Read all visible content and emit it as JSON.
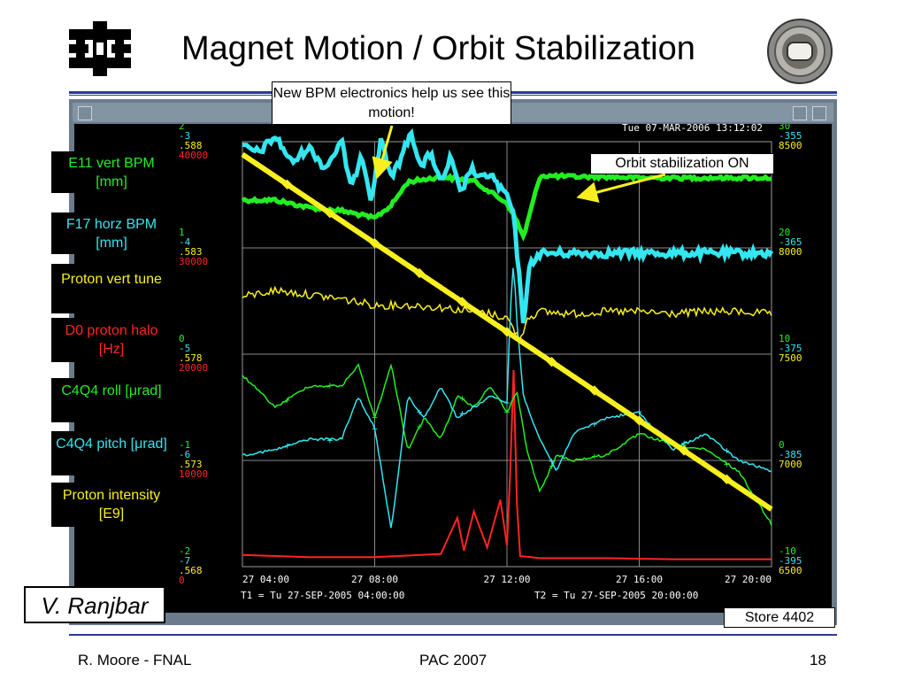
{
  "slide": {
    "title": "Magnet Motion / Orbit Stabilization",
    "callout_top": "New BPM electronics help us see this motion!",
    "callout_right": "Orbit stabilization ON",
    "author": "V. Ranjbar",
    "store": "Store 4402",
    "footer": {
      "left": "R. Moore - FNAL",
      "center": "PAC 2007",
      "right": "18"
    }
  },
  "colors": {
    "green": "#22ee22",
    "cyan": "#33e6ef",
    "yellow": "#f8f01e",
    "red": "#ff2424",
    "white": "#ffffff",
    "rule": "#2a3a9a"
  },
  "icons": {
    "logo": "fermilab-logo-icon",
    "badge": "tevatron-beampipe-icon"
  },
  "legend": [
    {
      "label": "E11 vert BPM [mm]",
      "color": "#22ee22"
    },
    {
      "label": "F17 horz BPM [mm]",
      "color": "#33e6ef"
    },
    {
      "label": "Proton vert tune",
      "color": "#f8f01e"
    },
    {
      "label": "D0 proton halo [Hz]",
      "color": "#ff2424"
    },
    {
      "label": "C4Q4 roll [μrad]",
      "color": "#22ee22"
    },
    {
      "label": "C4Q4 pitch [μrad]",
      "color": "#33e6ef"
    },
    {
      "label": "Proton intensity  [E9]",
      "color": "#f8f01e"
    }
  ],
  "chart_data": {
    "type": "line",
    "timestamp": "Tue 07-MAR-2006 13:12:02",
    "t1": "T1 = Tu 27-SEP-2005 04:00:00",
    "t2": "T2 = Tu 27-SEP-2005 20:00:00",
    "x_ticks": [
      "27 04:00",
      "27 08:00",
      "27 12:00",
      "27 16:00",
      "27 20:00"
    ],
    "left_axis": [
      {
        "green": "2",
        "cyan": "-3",
        "yellow": ".588",
        "red": "40000"
      },
      {
        "green": "1",
        "cyan": "-4",
        "yellow": ".583",
        "red": "30000"
      },
      {
        "green": "0",
        "cyan": "-5",
        "yellow": ".578",
        "red": "20000"
      },
      {
        "green": "-1",
        "cyan": "-6",
        "yellow": ".573",
        "red": "10000"
      },
      {
        "green": "-2",
        "cyan": "-7",
        "yellow": ".568",
        "red": "0"
      }
    ],
    "right_axis": [
      {
        "green": "30",
        "cyan": "-355",
        "yellow": "8500"
      },
      {
        "green": "20",
        "cyan": "-365",
        "yellow": "8000"
      },
      {
        "green": "10",
        "cyan": "-375",
        "yellow": "7500"
      },
      {
        "green": "0",
        "cyan": "-385",
        "yellow": "7000"
      },
      {
        "green": "-10",
        "cyan": "-395",
        "yellow": "6500"
      }
    ],
    "x_range": [
      4,
      20
    ],
    "series": [
      {
        "name": "E11 vert BPM [mm]",
        "color": "#22ee22",
        "thick": true,
        "x": [
          4,
          5,
          6,
          7,
          8,
          8.5,
          9,
          10,
          11,
          12,
          12.3,
          12.5,
          13,
          14,
          15,
          16,
          17,
          18,
          19,
          20
        ],
        "y": [
          1.45,
          1.45,
          1.38,
          1.35,
          1.28,
          1.4,
          1.62,
          1.67,
          1.63,
          1.42,
          1.25,
          1.1,
          1.68,
          1.67,
          1.67,
          1.66,
          1.66,
          1.66,
          1.66,
          1.66
        ]
      },
      {
        "name": "F17 horz BPM [mm]",
        "color": "#33e6ef",
        "thick": true,
        "x": [
          4,
          4.5,
          5,
          5.5,
          6,
          6.5,
          7,
          7.3,
          7.6,
          7.9,
          8.2,
          8.5,
          8.8,
          9.1,
          9.4,
          9.7,
          10,
          10.3,
          10.6,
          10.9,
          11.2,
          11.5,
          11.8,
          12,
          12.2,
          12.35,
          12.5,
          12.7,
          13,
          14,
          15,
          16,
          17,
          18,
          19,
          20
        ],
        "y": [
          -3.05,
          -3.1,
          -2.95,
          -3.2,
          -3.05,
          -3.25,
          -3.0,
          -3.45,
          -3.1,
          -3.55,
          -2.95,
          -3.35,
          -3.15,
          -2.9,
          -3.25,
          -3.1,
          -3.4,
          -3.15,
          -3.5,
          -3.25,
          -3.35,
          -3.3,
          -3.45,
          -3.5,
          -3.7,
          -4.2,
          -4.7,
          -4.15,
          -4.05,
          -4.05,
          -4.05,
          -4.05,
          -4.05,
          -4.05,
          -4.05,
          -4.05
        ]
      },
      {
        "name": "Proton vert tune",
        "color": "#f8f01e",
        "thick": false,
        "x": [
          4,
          5,
          6,
          7,
          8,
          9,
          10,
          11,
          11.5,
          12,
          12.2,
          12.4,
          12.6,
          13,
          14,
          15,
          16,
          17,
          18,
          19,
          20
        ],
        "y": [
          0.5807,
          0.581,
          0.5808,
          0.5806,
          0.5803,
          0.5803,
          0.5802,
          0.58,
          0.5799,
          0.5797,
          0.5792,
          0.5786,
          0.5797,
          0.58,
          0.5799,
          0.58,
          0.58,
          0.5799,
          0.58,
          0.58,
          0.5799
        ]
      },
      {
        "name": "D0 proton halo [Hz]",
        "color": "#ff2424",
        "thick": false,
        "x": [
          4,
          6,
          8,
          10,
          10.5,
          10.7,
          11,
          11.4,
          11.8,
          12.0,
          12.1,
          12.2,
          12.3,
          12.4,
          13,
          15,
          17,
          19,
          20
        ],
        "y": [
          1100,
          900,
          900,
          1200,
          4600,
          1500,
          5200,
          1800,
          6300,
          2000,
          9000,
          18500,
          6000,
          1000,
          800,
          800,
          700,
          700,
          700
        ]
      },
      {
        "name": "C4Q4 roll [μrad]",
        "color": "#22ee22",
        "thick": false,
        "x": [
          4,
          5,
          6,
          7,
          7.5,
          8,
          8.5,
          9,
          9.5,
          10,
          10.5,
          11,
          11.5,
          12,
          12.3,
          12.6,
          13,
          13.5,
          14,
          15,
          16,
          17,
          18,
          19,
          20
        ],
        "y": [
          -0.2,
          -0.5,
          -0.3,
          -0.3,
          -0.1,
          -0.6,
          -0.1,
          -0.9,
          -0.6,
          -0.8,
          -0.4,
          -0.5,
          -0.3,
          -0.55,
          -0.35,
          -0.9,
          -1.3,
          -0.95,
          -1.0,
          -0.95,
          -0.75,
          -0.85,
          -0.9,
          -1.1,
          -1.6
        ]
      },
      {
        "name": "C4Q4 pitch [μrad]",
        "color": "#33e6ef",
        "thick": false,
        "x": [
          4,
          5,
          6,
          7,
          7.5,
          8,
          8.5,
          9,
          9.5,
          10,
          10.5,
          11,
          11.5,
          12,
          12.1,
          12.2,
          12.3,
          12.5,
          13,
          13.5,
          14,
          15,
          16,
          17,
          18,
          19,
          20
        ],
        "y": [
          -5.95,
          -5.9,
          -5.8,
          -5.8,
          -5.4,
          -5.7,
          -6.65,
          -5.4,
          -5.6,
          -5.3,
          -5.6,
          -5.5,
          -5.4,
          -5.45,
          -4.6,
          -4.1,
          -4.7,
          -5.4,
          -5.8,
          -6.1,
          -5.75,
          -5.6,
          -5.55,
          -5.9,
          -5.75,
          -6.0,
          -6.1
        ]
      },
      {
        "name": "Proton intensity  [E9]",
        "color": "#f8f01e",
        "thick": true,
        "x": [
          4,
          20
        ],
        "y": [
          8440,
          6770
        ]
      }
    ]
  }
}
